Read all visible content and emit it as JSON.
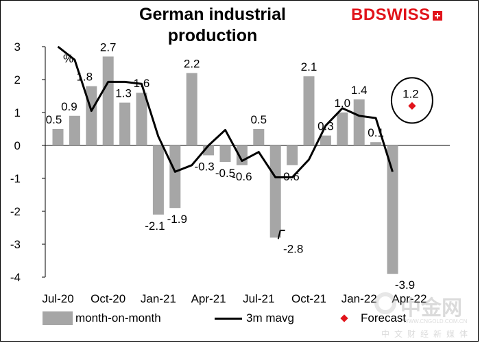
{
  "header": {
    "title": "German industrial production",
    "brand": "BDSWISS"
  },
  "watermark": {
    "name": "中金网",
    "url": "WWW.CNGOLD.COM.CN",
    "tagline": "中文财经新媒体"
  },
  "chart_data": {
    "type": "bar",
    "ylabel": "%",
    "ylim": [
      -4,
      3
    ],
    "yticks": [
      "3",
      "2",
      "1",
      "0",
      "-1",
      "-2",
      "-3",
      "-4"
    ],
    "categories": [
      "Jul-20",
      "Aug-20",
      "Sep-20",
      "Oct-20",
      "Nov-20",
      "Dec-20",
      "Jan-21",
      "Feb-21",
      "Mar-21",
      "Apr-21",
      "May-21",
      "Jun-21",
      "Jul-21",
      "Aug-21",
      "Sep-21",
      "Oct-21",
      "Nov-21",
      "Dec-21",
      "Jan-22",
      "Feb-22",
      "Mar-22",
      "Apr-22"
    ],
    "x_tick_labels": [
      "Jul-20",
      "Oct-20",
      "Jan-21",
      "Apr-21",
      "Jul-21",
      "Oct-21",
      "Jan-22",
      "Apr-22"
    ],
    "series": [
      {
        "name": "month-on-month",
        "type": "bar",
        "color": "#a6a6a6",
        "values": [
          0.5,
          0.9,
          1.8,
          2.7,
          1.3,
          1.6,
          -2.1,
          -1.9,
          2.2,
          -0.3,
          -0.5,
          -0.6,
          0.5,
          -2.8,
          -0.6,
          2.1,
          0.3,
          1.0,
          1.4,
          0.1,
          -3.9,
          null
        ],
        "labels": [
          "0.5",
          "0.9",
          "1.8",
          "2.7",
          "1.3",
          "1.6",
          "-2.1",
          "-1.9",
          "2.2",
          "-0.3",
          "-0.5",
          "-0.6",
          "0.5",
          "-2.8",
          "-0.6",
          "2.1",
          "0.3",
          "1.0",
          "1.4",
          "0.1",
          "-3.9",
          ""
        ]
      },
      {
        "name": "3m mavg",
        "type": "line",
        "color": "#000000",
        "values": [
          3.6,
          2.6,
          1.05,
          1.93,
          1.93,
          1.87,
          0.27,
          -0.8,
          -0.6,
          0.0,
          0.47,
          -0.47,
          -0.2,
          -0.97,
          -0.97,
          -0.43,
          0.6,
          1.13,
          0.9,
          0.83,
          -0.8,
          null
        ]
      },
      {
        "name": "Forecast",
        "type": "point",
        "color": "#e1141b",
        "values": [
          null,
          null,
          null,
          null,
          null,
          null,
          null,
          null,
          null,
          null,
          null,
          null,
          null,
          null,
          null,
          null,
          null,
          null,
          null,
          null,
          null,
          1.2
        ],
        "labels": [
          "",
          "",
          "",
          "",
          "",
          "",
          "",
          "",
          "",
          "",
          "",
          "",
          "",
          "",
          "",
          "",
          "",
          "",
          "",
          "",
          "",
          "1.2"
        ]
      }
    ],
    "legend": "bottom"
  }
}
